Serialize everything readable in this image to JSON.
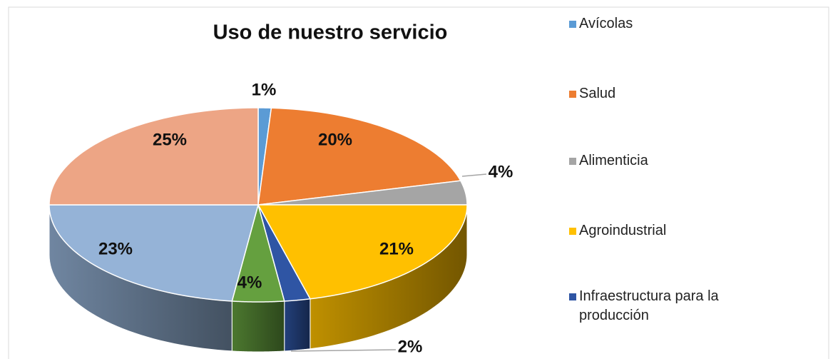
{
  "chart_data": {
    "type": "pie",
    "title": "Uso de nuestro servicio",
    "categories": [
      "Avícolas",
      "Salud",
      "Alimenticia",
      "Agroindustrial",
      "Infraestructura para la producción",
      null,
      null,
      null
    ],
    "values": [
      1,
      20,
      4,
      21,
      2,
      4,
      23,
      25
    ],
    "value_labels": [
      "1%",
      "20%",
      "4%",
      "21%",
      "2%",
      "4%",
      "23%",
      "25%"
    ],
    "colors": [
      "#5b9bd5",
      "#ed7d31",
      "#a5a5a5",
      "#ffc000",
      "#2f55a4",
      "#65a03f",
      "#95b3d7",
      "#eda585"
    ],
    "legend": "right"
  }
}
